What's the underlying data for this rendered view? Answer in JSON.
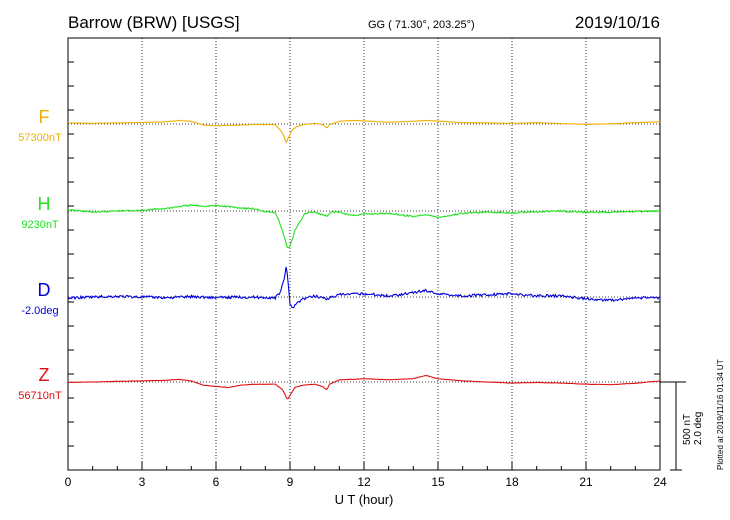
{
  "header": {
    "station": "Barrow (BRW)  [USGS]",
    "coords": "GG ( 71.30°, 203.25°)",
    "date": "2019/10/16"
  },
  "footer": {
    "plotted": "Plotted at 2019/11/16 01:34 UT",
    "scale_nt": "500 nT",
    "scale_deg": "2.0 deg"
  },
  "chart_data": {
    "type": "line",
    "xlabel": "U T (hour)",
    "xlim": [
      0,
      24
    ],
    "xticks": [
      "0",
      "3",
      "6",
      "9",
      "12",
      "15",
      "18",
      "21",
      "24"
    ],
    "grid": true,
    "series": [
      {
        "name": "F",
        "baseline_label": "57300nT",
        "color": "#f0b000",
        "x": [
          0,
          1,
          2,
          3,
          4,
          4.5,
          5,
          5.5,
          6,
          6.5,
          7,
          7.5,
          8,
          8.4,
          8.7,
          8.85,
          8.95,
          9.1,
          9.3,
          9.6,
          10,
          10.3,
          10.5,
          10.6,
          11,
          11.5,
          12,
          13,
          14,
          14.5,
          15,
          16,
          17,
          18,
          19,
          20,
          21,
          22,
          23,
          24
        ],
        "values": [
          0.5,
          0.3,
          0.5,
          0.7,
          1.0,
          1.6,
          1.2,
          -0.5,
          -0.8,
          -0.6,
          -0.5,
          -0.2,
          -0.3,
          -0.3,
          -4.0,
          -8.5,
          -6.0,
          -2.5,
          -1.0,
          -0.2,
          0.3,
          -0.2,
          -1.8,
          -0.3,
          1.2,
          1.6,
          1.4,
          0.8,
          1.2,
          1.6,
          1.3,
          0.6,
          0.5,
          0.3,
          0.6,
          0.2,
          -0.2,
          0.1,
          0.6,
          1.0
        ]
      },
      {
        "name": "H",
        "baseline_label": "9230nT",
        "color": "#22e022",
        "x": [
          0,
          1,
          2,
          3,
          4,
          4.5,
          5,
          5.5,
          6,
          6.5,
          7,
          7.5,
          8,
          8.4,
          8.6,
          8.8,
          8.9,
          9.0,
          9.2,
          9.6,
          10,
          10.5,
          10.7,
          11,
          11.5,
          12,
          13,
          14,
          14.5,
          15,
          16,
          17,
          18,
          19,
          20,
          21,
          22,
          23,
          24
        ],
        "values": [
          0.5,
          -0.5,
          0.0,
          0.3,
          1.2,
          2.0,
          2.6,
          2.2,
          2.4,
          2.0,
          1.4,
          1.0,
          -0.2,
          -0.5,
          -6.0,
          -13.0,
          -17.0,
          -16.0,
          -9.0,
          -1.0,
          -0.5,
          -2.5,
          -0.3,
          -0.6,
          -2.0,
          -1.5,
          -1.0,
          -2.5,
          -1.5,
          -3.0,
          -1.0,
          -0.5,
          -0.8,
          -0.3,
          0.0,
          -0.6,
          -0.5,
          -0.3,
          0.0
        ]
      },
      {
        "name": "D",
        "baseline_label": "-2.0deg",
        "color": "#0000dd",
        "x": [
          0,
          1,
          2,
          3,
          4,
          5,
          6,
          7,
          8,
          8.4,
          8.6,
          8.8,
          8.85,
          8.9,
          9.0,
          9.1,
          9.2,
          9.5,
          10,
          10.5,
          11,
          12,
          13,
          14,
          14.5,
          15,
          16,
          17,
          18,
          19,
          20,
          21,
          22,
          23,
          24
        ],
        "values": [
          -0.5,
          0.0,
          0.3,
          0.0,
          -0.3,
          0.2,
          -0.3,
          0.0,
          -0.2,
          -0.5,
          2.0,
          10.0,
          14.0,
          9.0,
          -3.0,
          -5.0,
          -3.5,
          -1.0,
          0.5,
          -0.8,
          1.0,
          1.5,
          0.5,
          2.0,
          3.0,
          1.5,
          0.5,
          1.0,
          1.5,
          0.5,
          0.5,
          -0.8,
          -1.5,
          -0.5,
          -0.3
        ]
      },
      {
        "name": "Z",
        "baseline_label": "56710nT",
        "color": "#e01010",
        "x": [
          0,
          1,
          2,
          3,
          4,
          4.5,
          5,
          5.5,
          6,
          6.5,
          7,
          7.5,
          8,
          8.4,
          8.7,
          8.9,
          9.0,
          9.2,
          9.5,
          10,
          10.3,
          10.5,
          10.6,
          11,
          11.5,
          12,
          13,
          14,
          14.5,
          15,
          16,
          17,
          18,
          19,
          20,
          21,
          22,
          23,
          24
        ],
        "values": [
          -0.2,
          0.0,
          0.3,
          0.5,
          0.8,
          1.2,
          0.5,
          -1.5,
          -2.0,
          -2.5,
          -1.5,
          -1.0,
          -1.0,
          -1.0,
          -3.5,
          -8.0,
          -6.0,
          -2.5,
          -1.5,
          -1.0,
          -2.0,
          -3.5,
          -1.0,
          1.0,
          1.2,
          1.5,
          1.0,
          1.5,
          3.0,
          1.5,
          0.5,
          0.0,
          -0.5,
          -0.2,
          -0.5,
          -1.0,
          -1.2,
          -0.6,
          0.5
        ]
      }
    ]
  }
}
